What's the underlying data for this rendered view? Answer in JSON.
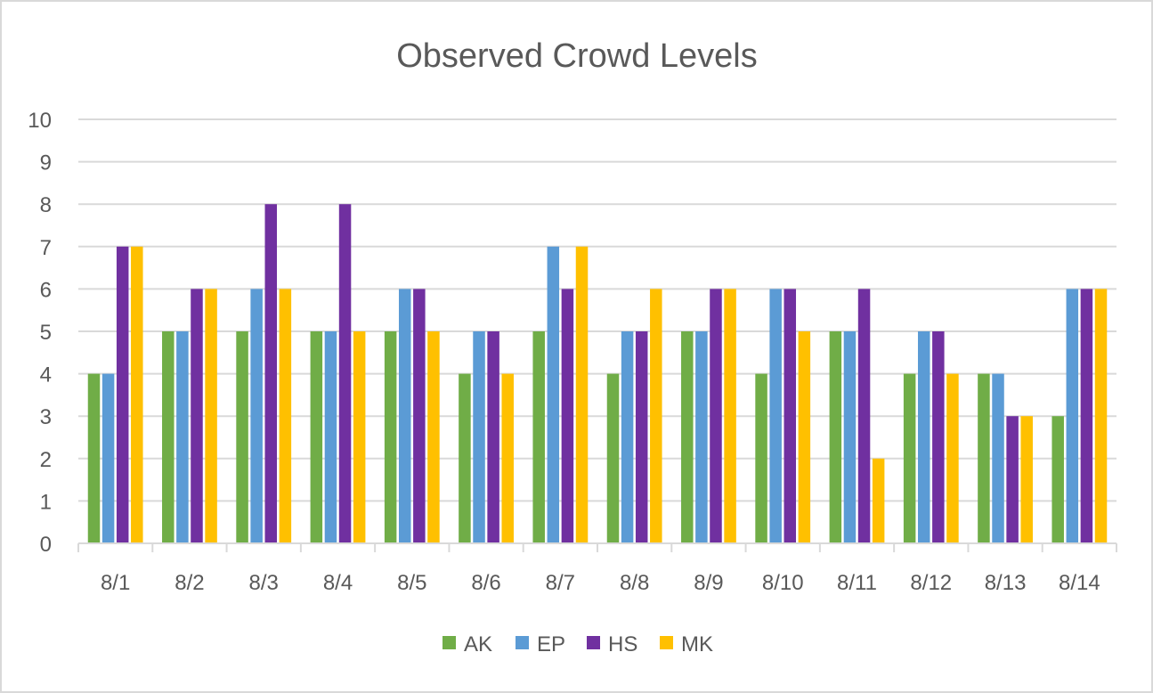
{
  "chart_data": {
    "type": "bar",
    "title": "Observed Crowd Levels",
    "xlabel": "",
    "ylabel": "",
    "ylim": [
      0,
      10
    ],
    "yticks": [
      0,
      1,
      2,
      3,
      4,
      5,
      6,
      7,
      8,
      9,
      10
    ],
    "grid": true,
    "legend_position": "bottom",
    "categories": [
      "8/1",
      "8/2",
      "8/3",
      "8/4",
      "8/5",
      "8/6",
      "8/7",
      "8/8",
      "8/9",
      "8/10",
      "8/11",
      "8/12",
      "8/13",
      "8/14"
    ],
    "series": [
      {
        "name": "AK",
        "color": "#70ad47",
        "values": [
          4,
          5,
          5,
          5,
          5,
          4,
          5,
          4,
          5,
          4,
          5,
          4,
          4,
          3
        ]
      },
      {
        "name": "EP",
        "color": "#5b9bd5",
        "values": [
          4,
          5,
          6,
          5,
          6,
          5,
          7,
          5,
          5,
          6,
          5,
          5,
          4,
          6
        ]
      },
      {
        "name": "HS",
        "color": "#7030a0",
        "values": [
          7,
          6,
          8,
          8,
          6,
          5,
          6,
          5,
          6,
          6,
          6,
          5,
          3,
          6
        ]
      },
      {
        "name": "MK",
        "color": "#ffc000",
        "values": [
          7,
          6,
          6,
          5,
          5,
          4,
          7,
          6,
          6,
          5,
          2,
          4,
          3,
          6
        ]
      }
    ]
  }
}
